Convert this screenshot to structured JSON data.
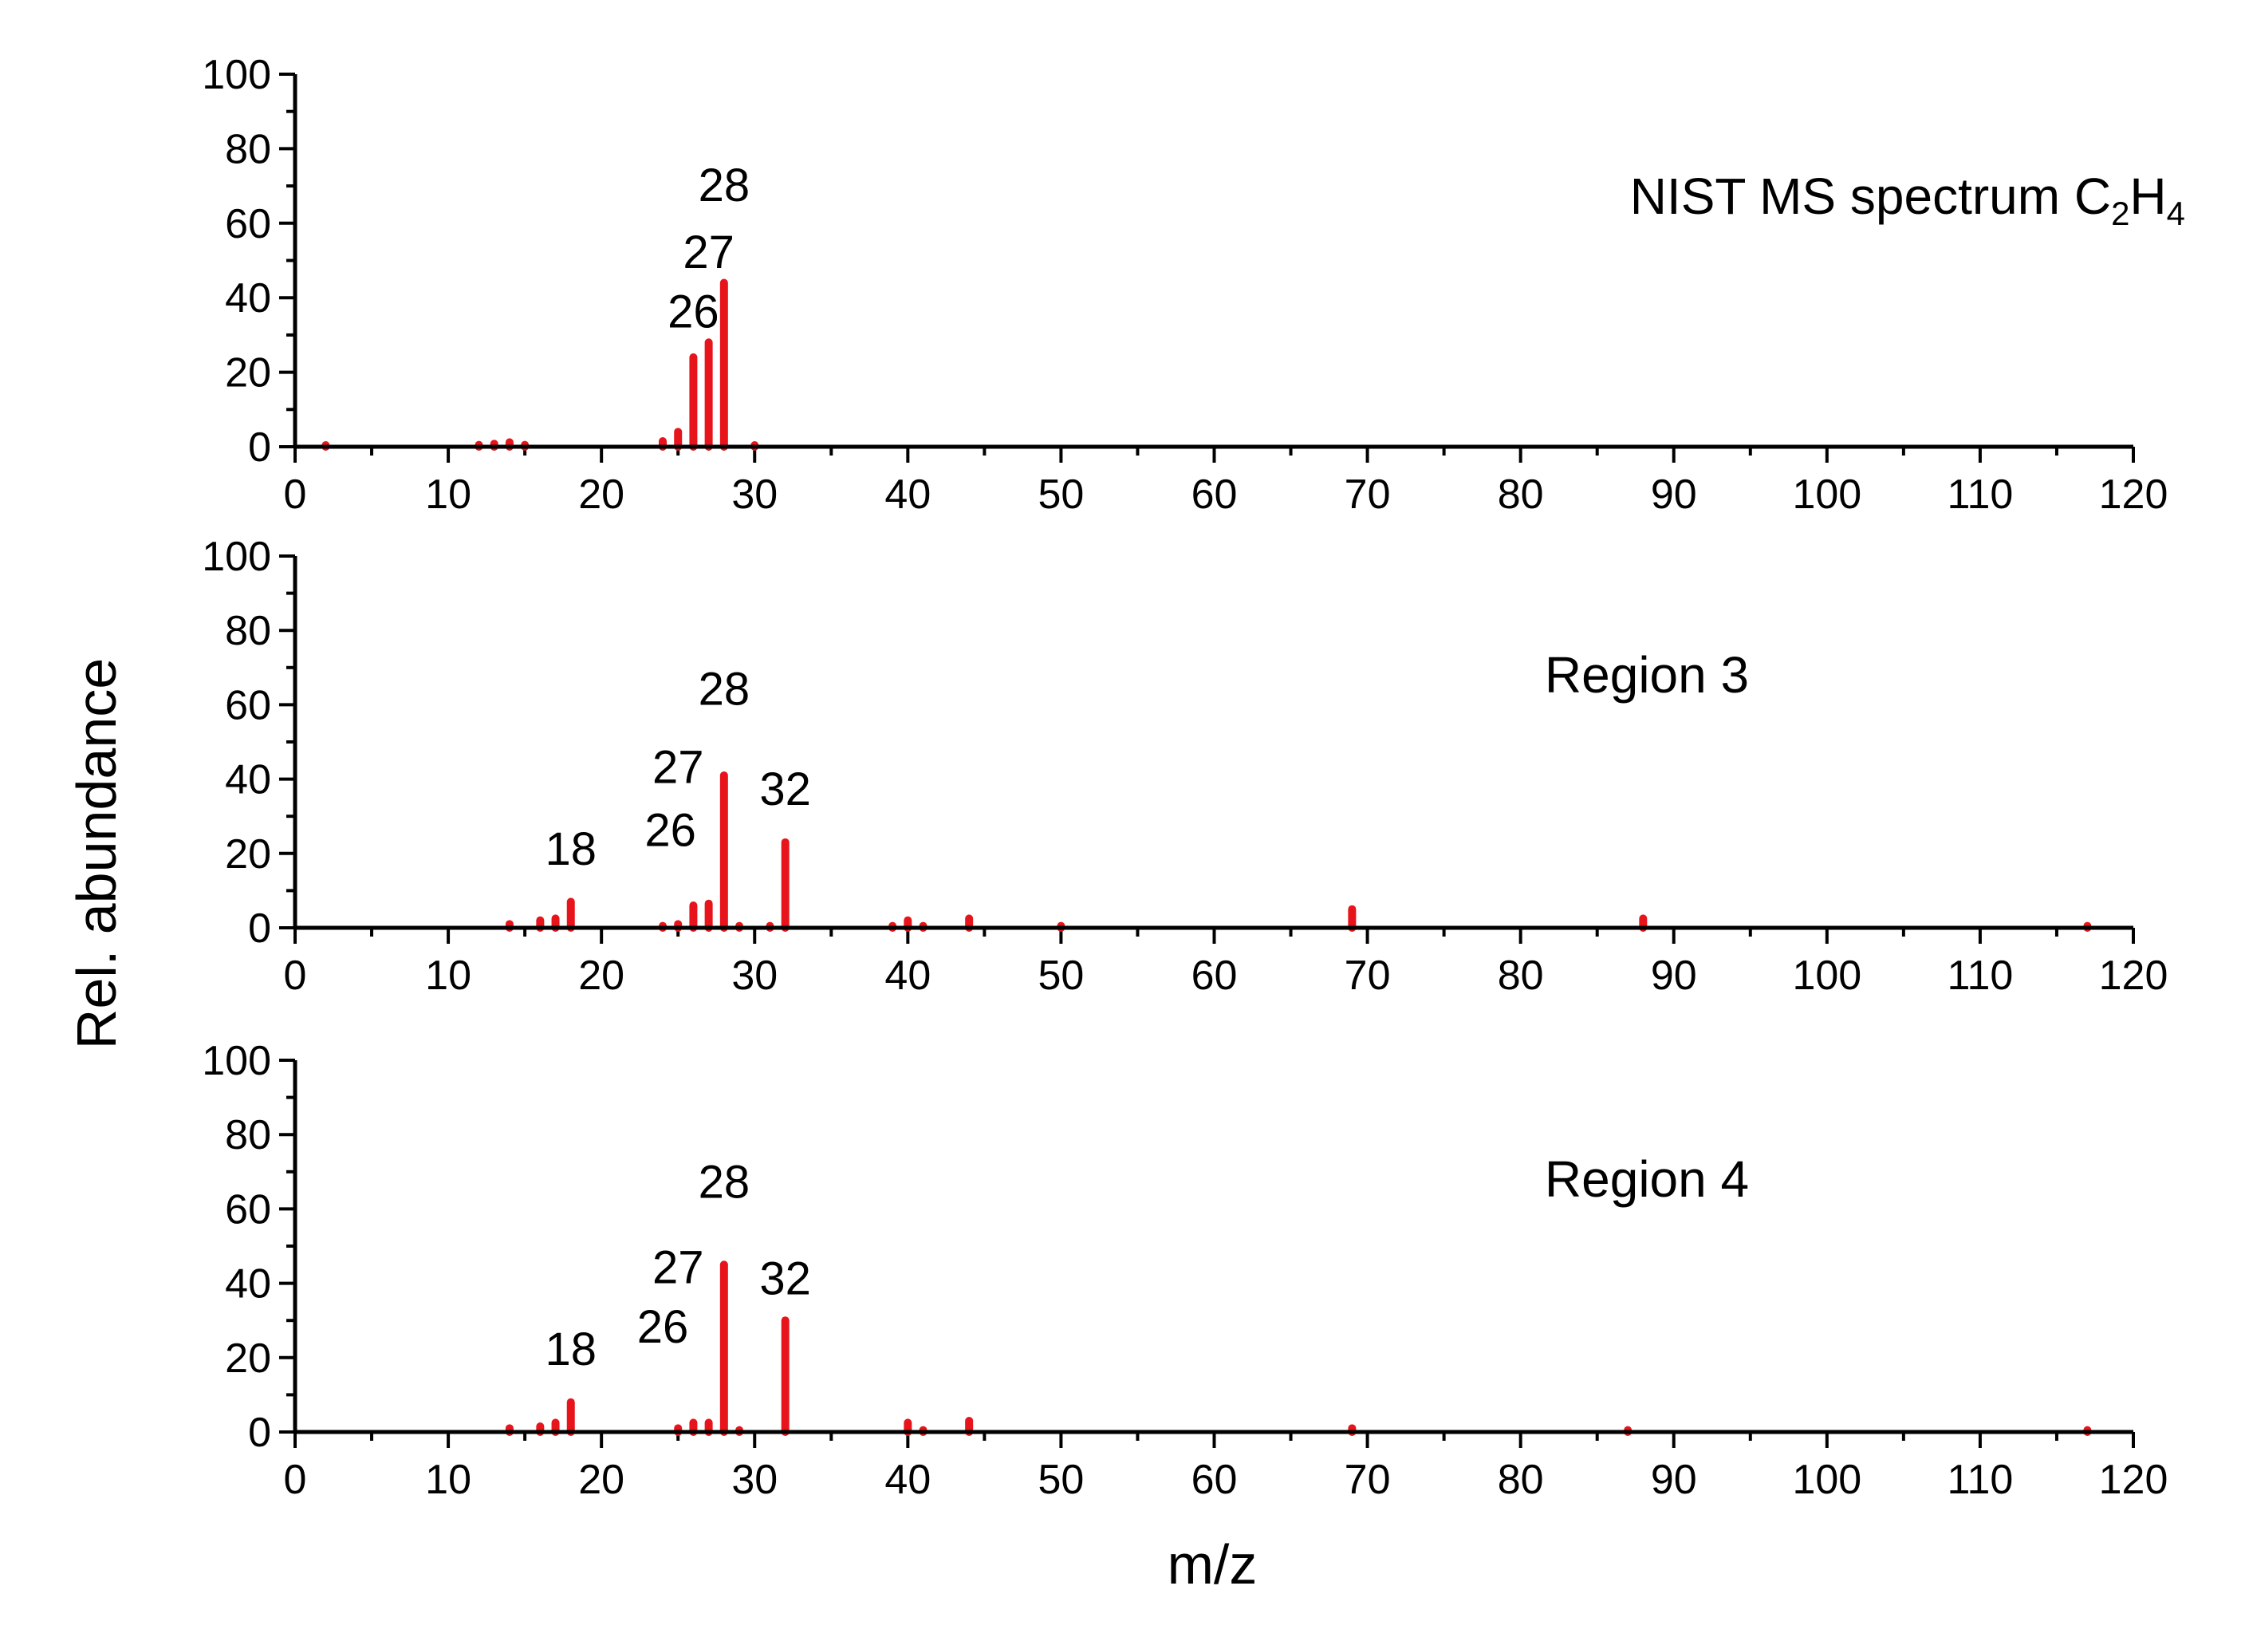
{
  "figure": {
    "ylabel": "Rel. abundance",
    "xlabel": "m/z",
    "bar_color": "#e8141c",
    "axis_color": "#000000"
  },
  "chart_data": [
    {
      "type": "bar",
      "title": "NIST MS spectrum C",
      "title_sub1": "2",
      "title_mid": "H",
      "title_sub2": "4",
      "xlim": [
        0,
        120
      ],
      "ylim": [
        0,
        100
      ],
      "xticks": [
        "0",
        "10",
        "20",
        "30",
        "40",
        "50",
        "60",
        "70",
        "80",
        "90",
        "100",
        "110",
        "120"
      ],
      "yticks": [
        "0",
        "20",
        "40",
        "60",
        "80",
        "100"
      ],
      "x": [
        2,
        12,
        13,
        14,
        15,
        24,
        25,
        26,
        27,
        28,
        30
      ],
      "values": [
        0.3,
        0.5,
        0.8,
        1.2,
        0.5,
        1.5,
        4,
        24,
        28,
        44,
        0.3
      ],
      "annotations": [
        {
          "text": "26",
          "x": 26,
          "y": 32
        },
        {
          "text": "27",
          "x": 27,
          "y": 48
        },
        {
          "text": "28",
          "x": 28,
          "y": 66
        }
      ]
    },
    {
      "type": "bar",
      "title": "Region 3",
      "xlim": [
        0,
        120
      ],
      "ylim": [
        0,
        100
      ],
      "xticks": [
        "0",
        "10",
        "20",
        "30",
        "40",
        "50",
        "60",
        "70",
        "80",
        "90",
        "100",
        "110",
        "120"
      ],
      "yticks": [
        "0",
        "20",
        "40",
        "60",
        "80",
        "100"
      ],
      "x": [
        14,
        16,
        17,
        18,
        24,
        25,
        26,
        27,
        28,
        29,
        31,
        32,
        39,
        40,
        41,
        44,
        50,
        69,
        88,
        117
      ],
      "values": [
        1,
        2,
        2.5,
        7,
        0.5,
        1,
        6,
        6.5,
        41,
        0.5,
        0.5,
        23,
        0.5,
        2,
        0.5,
        2.5,
        0.5,
        5,
        2.5,
        0.5
      ],
      "annotations": [
        {
          "text": "18",
          "x": 18,
          "y": 17
        },
        {
          "text": "26",
          "x": 24.5,
          "y": 22
        },
        {
          "text": "27",
          "x": 25,
          "y": 39
        },
        {
          "text": "28",
          "x": 28,
          "y": 60
        },
        {
          "text": "32",
          "x": 32,
          "y": 33
        }
      ]
    },
    {
      "type": "bar",
      "title": "Region 4",
      "xlim": [
        0,
        120
      ],
      "ylim": [
        0,
        100
      ],
      "xticks": [
        "0",
        "10",
        "20",
        "30",
        "40",
        "50",
        "60",
        "70",
        "80",
        "90",
        "100",
        "110",
        "120"
      ],
      "yticks": [
        "0",
        "20",
        "40",
        "60",
        "80",
        "100"
      ],
      "x": [
        14,
        16,
        17,
        18,
        25,
        26,
        27,
        28,
        29,
        32,
        40,
        41,
        44,
        69,
        87,
        117
      ],
      "values": [
        1,
        1.5,
        2.5,
        8,
        1,
        2.5,
        2.5,
        45,
        0.5,
        30,
        2.5,
        0.5,
        3,
        1,
        0.5,
        0.5
      ],
      "annotations": [
        {
          "text": "18",
          "x": 18,
          "y": 18
        },
        {
          "text": "26",
          "x": 24,
          "y": 24
        },
        {
          "text": "27",
          "x": 25,
          "y": 40
        },
        {
          "text": "28",
          "x": 28,
          "y": 63
        },
        {
          "text": "32",
          "x": 32,
          "y": 37
        }
      ]
    }
  ]
}
